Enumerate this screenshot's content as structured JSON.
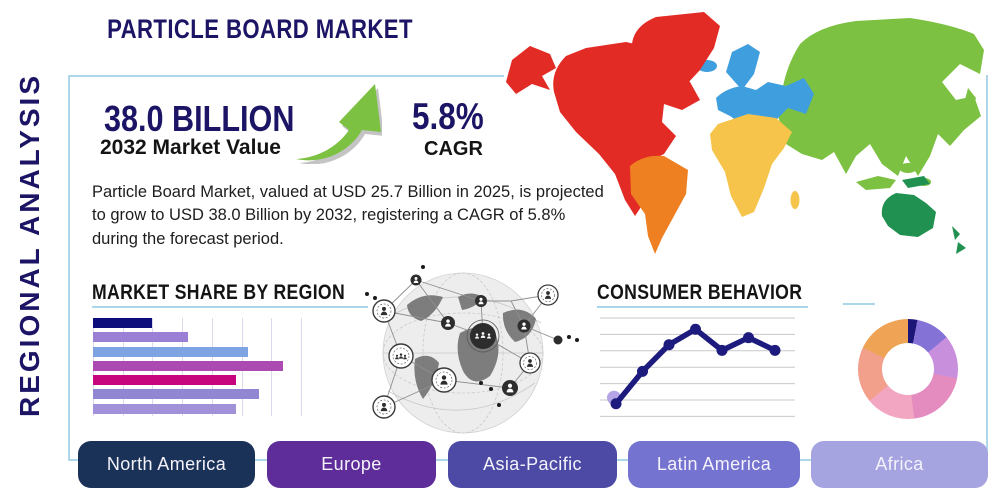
{
  "page": {
    "title": "PARTICLE BOARD MARKET",
    "side_label": "REGIONAL ANALYSIS",
    "accent_navy": "#1c1464",
    "panel_border_color": "#aed7ea"
  },
  "stats": {
    "market_value": "38.0 BILLION",
    "market_value_caption": "2032 Market Value",
    "cagr_value": "5.8%",
    "cagr_caption": "CAGR",
    "arrow_color": "#7cc142"
  },
  "description": "Particle Board Market, valued at USD 25.7 Billion in 2025, is projected to grow to USD 38.0 Billion by 2032, registering a CAGR of 5.8% during the forecast period.",
  "sections": {
    "market_share_title": "MARKET SHARE BY REGION",
    "consumer_behavior_title": "CONSUMER BEHAVIOR"
  },
  "region_buttons": [
    {
      "label": "North America",
      "color": "#1b3258"
    },
    {
      "label": "Europe",
      "color": "#5e2d99"
    },
    {
      "label": "Asia-Pacific",
      "color": "#4c4aa4"
    },
    {
      "label": "Latin America",
      "color": "#7573d0"
    },
    {
      "label": "Africa",
      "color": "#a5a3e0"
    }
  ],
  "map": {
    "colors": {
      "north_america": "#e32b26",
      "greenland": "#e32b26",
      "south_america": "#ee8022",
      "europe": "#3f9ede",
      "iceland": "#3f9ede",
      "africa": "#f6c44a",
      "asia": "#7cc142",
      "australia": "#209150"
    }
  },
  "chart_data": [
    {
      "id": "market_share_by_region",
      "type": "bar",
      "orientation": "horizontal",
      "title": "MARKET SHARE BY REGION",
      "values": [
        2.0,
        3.2,
        5.2,
        6.4,
        4.8,
        5.6,
        4.8
      ],
      "xlim": [
        0,
        7
      ],
      "gridlines": 8,
      "bar_colors": [
        "#0e0d7c",
        "#9a7fd4",
        "#7ea3e2",
        "#ab4bb2",
        "#c7067e",
        "#9186d1",
        "#a091d8"
      ],
      "tick_labels_shown": false
    },
    {
      "id": "consumer_behavior",
      "type": "line",
      "title": "CONSUMER BEHAVIOR",
      "x": [
        1,
        2,
        3,
        4,
        5,
        6,
        7
      ],
      "y": [
        0.9,
        3.2,
        5.1,
        6.2,
        4.7,
        5.6,
        4.7
      ],
      "ylim": [
        0,
        7
      ],
      "gridlines": 7,
      "line_color": "#1d1b7d",
      "marker_color": "#1d1b7d",
      "first_point_highlight_color": "#b5a4e6",
      "grid": "horizontal",
      "tick_labels_shown": false
    },
    {
      "id": "regional_share_donut",
      "type": "pie",
      "donut": true,
      "slices": [
        {
          "pct": 3,
          "color": "#1c1678"
        },
        {
          "pct": 11,
          "color": "#8472d6"
        },
        {
          "pct": 14,
          "color": "#c88fdc"
        },
        {
          "pct": 20,
          "color": "#e48cc0"
        },
        {
          "pct": 16,
          "color": "#f2a6c2"
        },
        {
          "pct": 18,
          "color": "#f29f8b"
        },
        {
          "pct": 18,
          "color": "#eea355"
        }
      ],
      "labels_shown": false
    }
  ]
}
